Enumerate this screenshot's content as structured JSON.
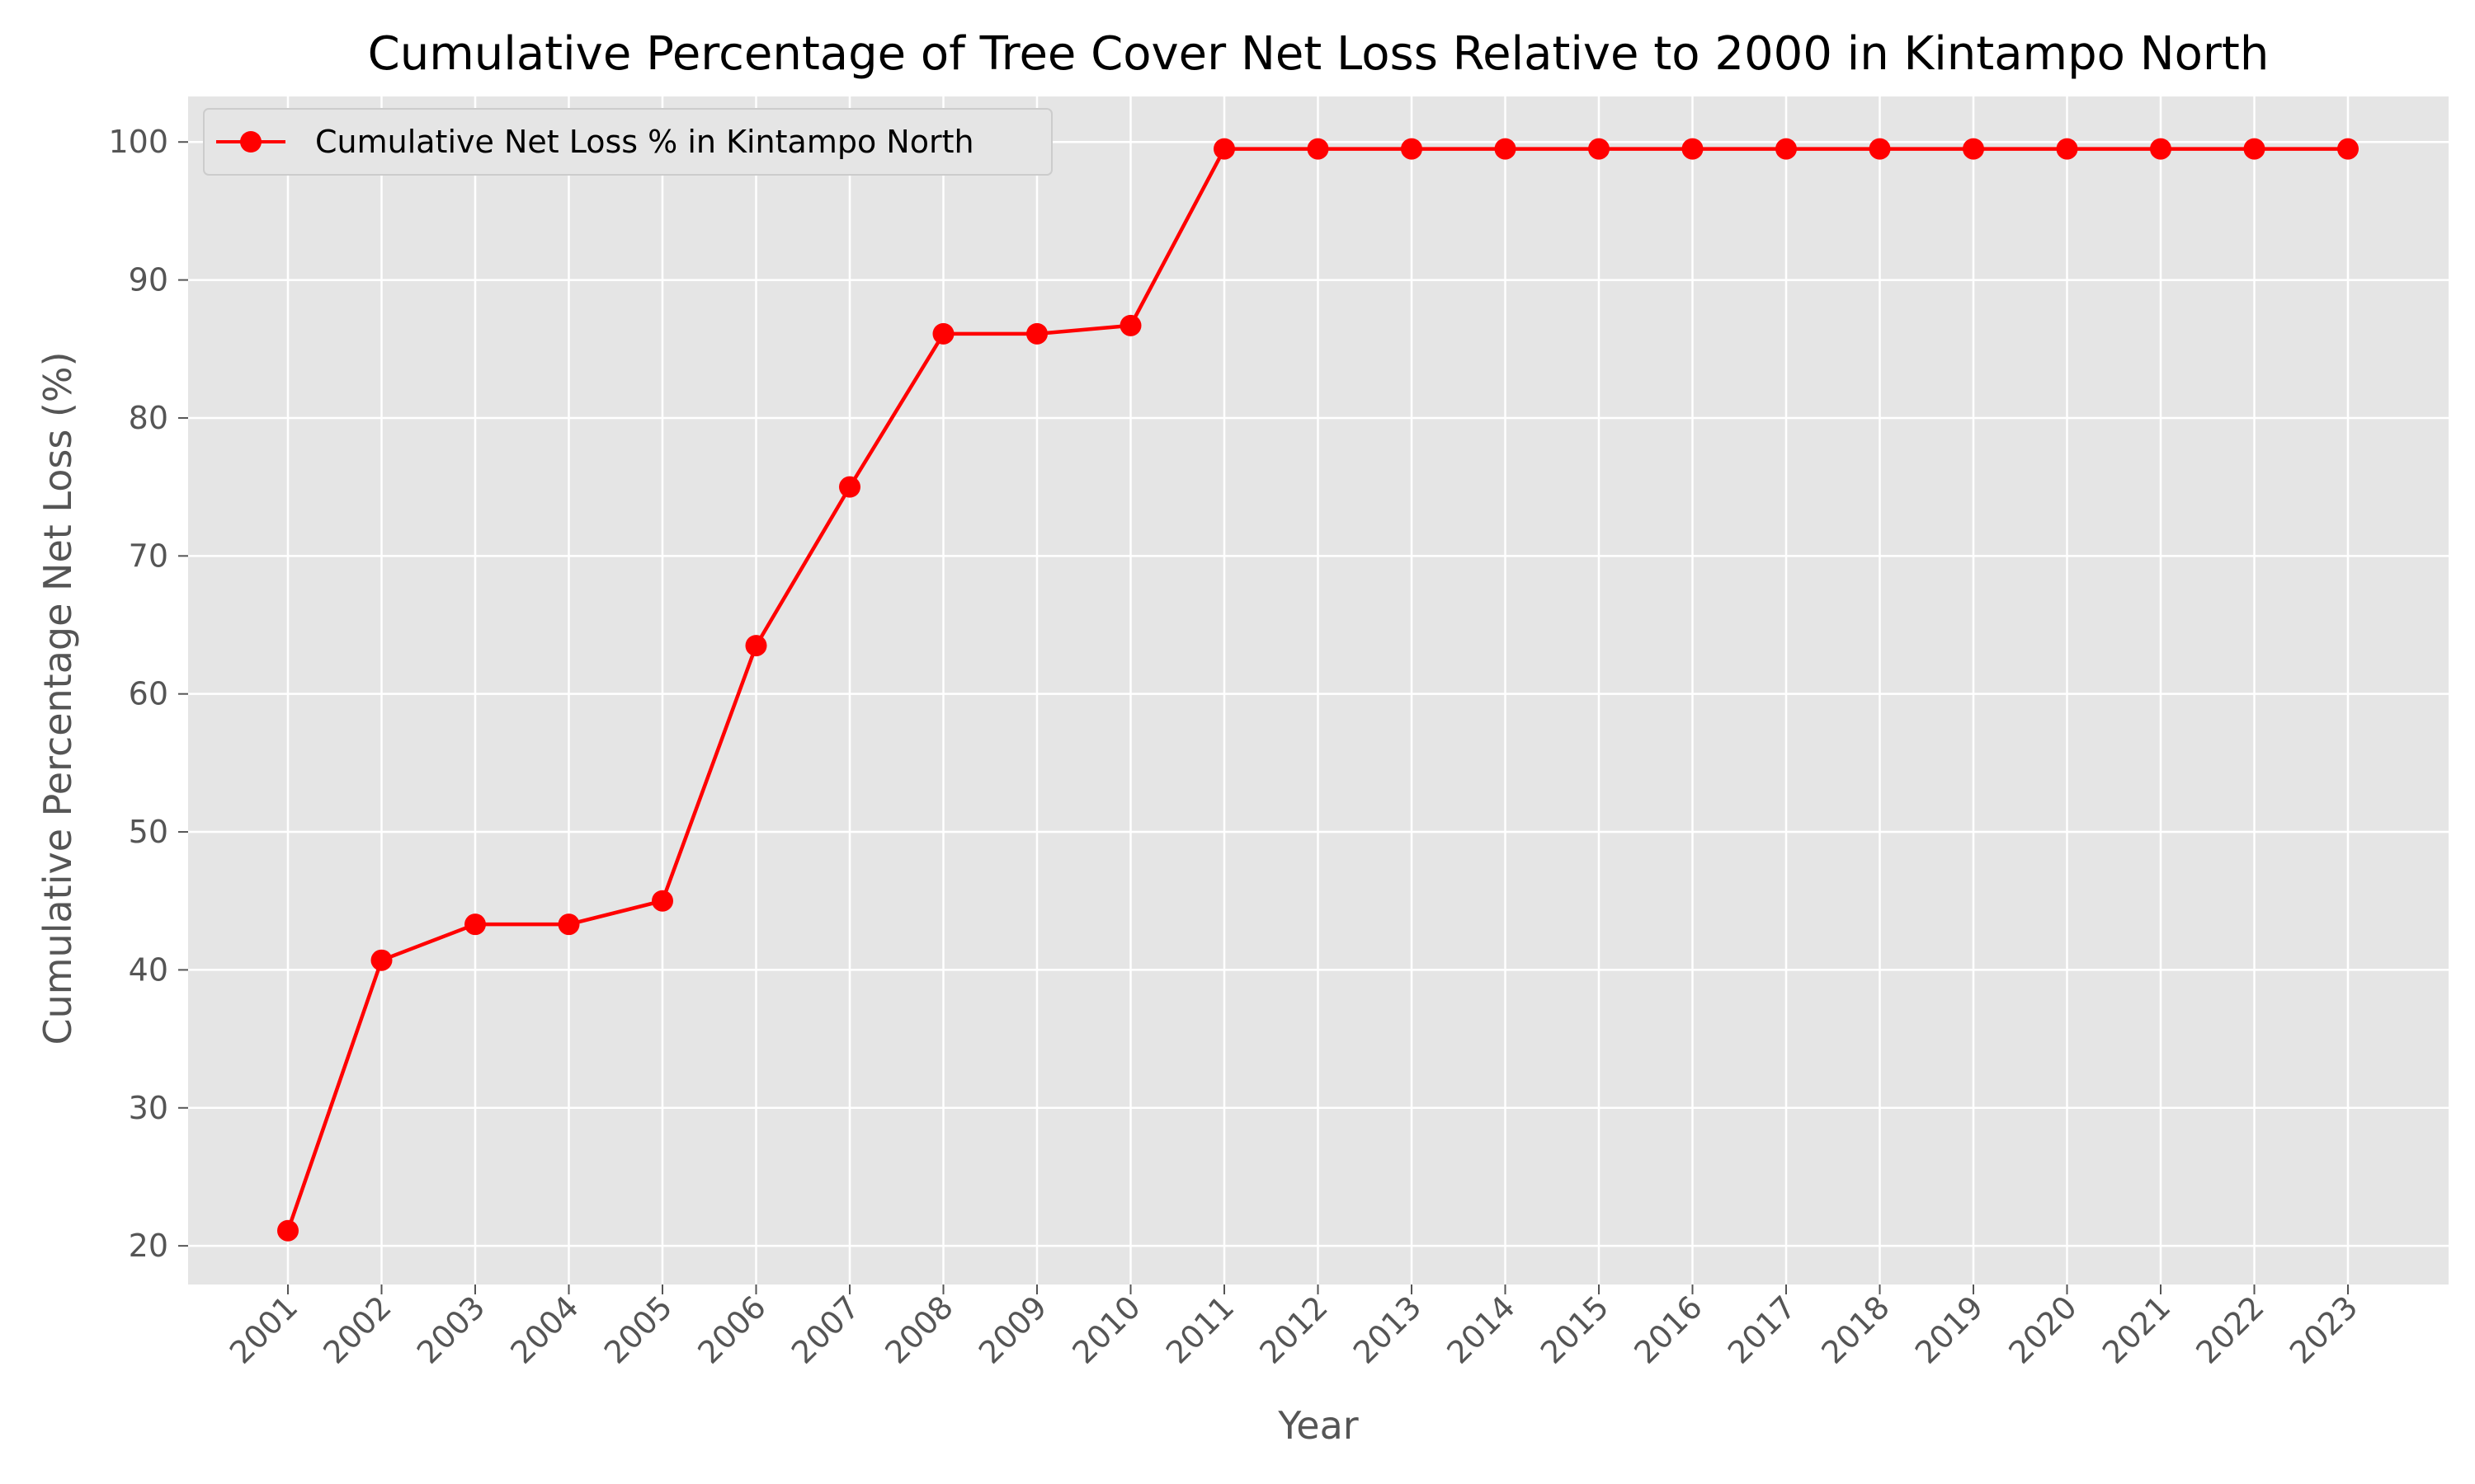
{
  "chart_data": {
    "type": "line",
    "title": "Cumulative Percentage of Tree Cover Net Loss Relative to 2000 in Kintampo North",
    "xlabel": "Year",
    "ylabel": "Cumulative Percentage Net Loss (%)",
    "x": [
      "2001",
      "2002",
      "2003",
      "2004",
      "2005",
      "2006",
      "2007",
      "2008",
      "2009",
      "2010",
      "2011",
      "2012",
      "2013",
      "2014",
      "2015",
      "2016",
      "2017",
      "2018",
      "2019",
      "2020",
      "2021",
      "2022",
      "2023"
    ],
    "y_ticks": [
      20,
      30,
      40,
      50,
      60,
      70,
      80,
      90,
      100
    ],
    "ylim": [
      17.2,
      103.3
    ],
    "grid": true,
    "legend_position": "top-left",
    "series": [
      {
        "name": "Cumulative Net Loss % in Kintampo North",
        "color": "#ff0000",
        "marker": "circle",
        "values": [
          21.1,
          40.7,
          43.3,
          43.3,
          45.0,
          63.5,
          75.0,
          86.1,
          86.1,
          86.7,
          99.5,
          99.5,
          99.5,
          99.5,
          99.5,
          99.5,
          99.5,
          99.5,
          99.5,
          99.5,
          99.5,
          99.5,
          99.5
        ]
      }
    ]
  },
  "colors": {
    "plot_background": "#e5e5e5",
    "grid": "#ffffff",
    "series": "#ff0000"
  }
}
